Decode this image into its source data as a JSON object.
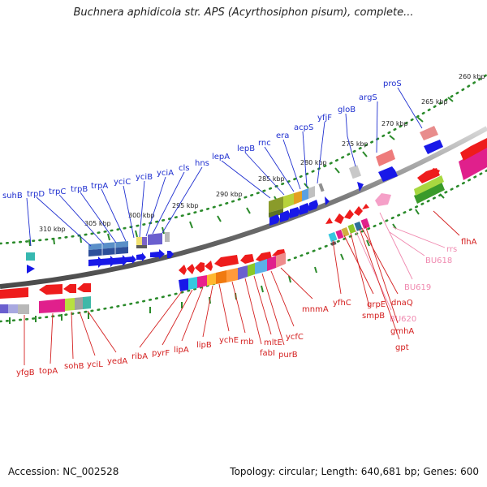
{
  "title": "Buchnera aphidicola str. APS (Acyrthosiphon pisum), complete...",
  "accession": "Accession: NC_002528",
  "topology": "Topology: circular; Length: 640,681 bp; Genes: 600",
  "colors": {
    "backbone": "#8c8c8c",
    "ticks": "#2a8a2a",
    "top_label": "#1f2fd0",
    "bottom_label": "#d42020",
    "pink_label": "#f08ab0",
    "forward_arrow": "#1818e8",
    "reverse_arrow": "#ee1c1c"
  },
  "kbp_labels": [
    "260 kbp",
    "265 kbp",
    "270 kbp",
    "275 kbp",
    "280 kbp",
    "285 kbp",
    "290 kbp",
    "295 kbp",
    "300 kbp",
    "305 kbp",
    "310 kbp"
  ],
  "top_genes": [
    "suhB",
    "trpD",
    "trpC",
    "trpB",
    "trpA",
    "yciC",
    "yciB",
    "yciA",
    "cls",
    "hns",
    "lepA",
    "lepB",
    "rnc",
    "era",
    "acpS",
    "yfjF",
    "gloB",
    "argS",
    "proS"
  ],
  "bottom_genes": [
    "yfgB",
    "topA",
    "sohB",
    "yciL",
    "yedA",
    "ribA",
    "pyrF",
    "lipA",
    "lipB",
    "ychE",
    "rnb",
    "fabI",
    "mltE",
    "purB",
    "ycfC",
    "mnmA",
    "yfhC",
    "grpE",
    "smpB",
    "dnaQ",
    "BU620",
    "gmhA",
    "gpt",
    "BU619",
    "BU618",
    "rrs",
    "flhA"
  ]
}
